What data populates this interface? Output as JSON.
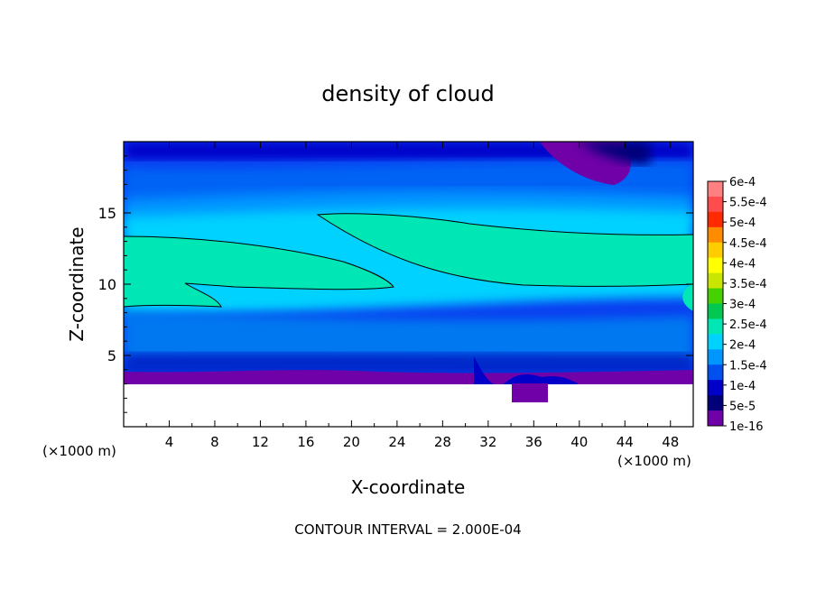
{
  "chart_data": {
    "type": "heatmap",
    "title": "density of cloud",
    "xlabel": "X-coordinate",
    "ylabel": "Z-coordinate",
    "x_unit_left": "(×1000 m)",
    "x_unit_right": "(×1000 m)",
    "footer": "CONTOUR INTERVAL = 2.000E-04",
    "xlim": [
      0,
      50
    ],
    "ylim": [
      0,
      20
    ],
    "x_ticks": [
      4,
      8,
      12,
      16,
      20,
      24,
      28,
      32,
      36,
      40,
      44,
      48
    ],
    "y_ticks": [
      5,
      10,
      15
    ],
    "colorbar": {
      "labels": [
        "6e-4",
        "5.5e-4",
        "5e-4",
        "4.5e-4",
        "4e-4",
        "3.5e-4",
        "3e-4",
        "2.5e-4",
        "2e-4",
        "1.5e-4",
        "1e-4",
        "5e-5",
        "1e-16"
      ],
      "colors": [
        "#ff8080",
        "#ff4d4d",
        "#ff2a00",
        "#ff8c00",
        "#ffcc00",
        "#ffff00",
        "#c8e600",
        "#46d200",
        "#00c850",
        "#00e6b4",
        "#00d2ff",
        "#0096ff",
        "#0050f0",
        "#0000c8",
        "#000078",
        "#7000a8"
      ]
    },
    "contour_level": 0.0002,
    "layers_by_height": [
      {
        "z": [
          19.5,
          20
        ],
        "value": 5e-05
      },
      {
        "z": [
          17,
          19.5
        ],
        "value": 0.0001
      },
      {
        "z": [
          15,
          17
        ],
        "value": 0.00015
      },
      {
        "z": [
          10,
          15
        ],
        "value": 0.0002
      },
      {
        "z": [
          7,
          10
        ],
        "value": 0.00015
      },
      {
        "z": [
          4.5,
          7
        ],
        "value": 0.0001
      },
      {
        "z": [
          3,
          4.5
        ],
        "value": 5e-05
      }
    ],
    "no_data_below_z": 3
  }
}
